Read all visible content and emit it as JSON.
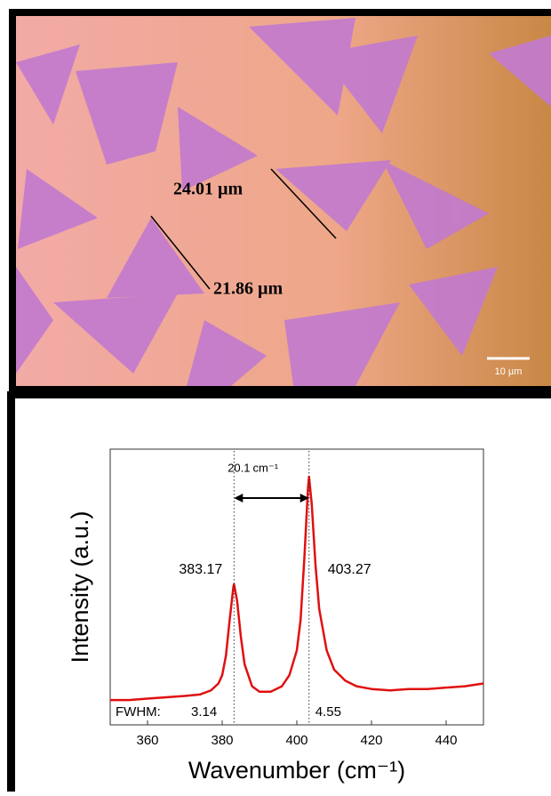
{
  "image": {
    "annotations": [
      "24.01 µm",
      "21.86 µm"
    ],
    "scale_bar": "10 µm"
  },
  "chart_data": {
    "type": "line",
    "x_label": "Wavenumber (cm⁻¹)",
    "y_label": "Intensity (a.u.)",
    "xlim": [
      350,
      450
    ],
    "xticks": [
      360,
      380,
      400,
      420,
      440
    ],
    "ylim": [
      0,
      1
    ],
    "series": [
      {
        "color": "#e01010",
        "x": [
          350,
          355,
          360,
          365,
          370,
          374,
          377,
          379,
          380,
          381,
          382,
          383,
          383.17,
          384,
          385,
          386,
          388,
          390,
          393,
          396,
          398,
          400,
          401,
          402,
          403,
          403.27,
          404,
          405,
          406,
          408,
          410,
          413,
          416,
          420,
          425,
          430,
          435,
          440,
          445,
          450
        ],
        "values": [
          0.09,
          0.09,
          0.095,
          0.1,
          0.105,
          0.11,
          0.125,
          0.15,
          0.18,
          0.25,
          0.38,
          0.5,
          0.51,
          0.45,
          0.32,
          0.22,
          0.14,
          0.12,
          0.12,
          0.14,
          0.18,
          0.27,
          0.38,
          0.6,
          0.86,
          0.9,
          0.8,
          0.58,
          0.42,
          0.27,
          0.2,
          0.16,
          0.14,
          0.13,
          0.125,
          0.13,
          0.13,
          0.135,
          0.14,
          0.15
        ]
      }
    ],
    "peak_positions": [
      383.17,
      403.27
    ],
    "splitting": 20.1,
    "splitting_unit": "cm⁻¹",
    "fwhm_label": "FWHM:",
    "fwhm": [
      3.14,
      4.55
    ]
  }
}
